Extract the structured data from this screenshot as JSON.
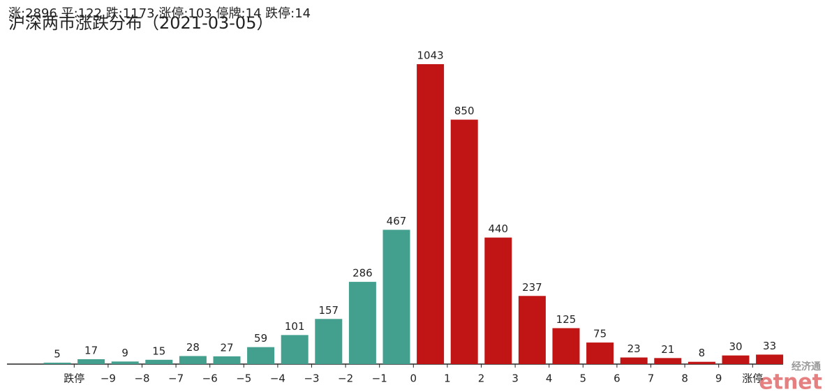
{
  "chart_data": {
    "type": "bar",
    "summary": "涨:2896 平:122 跌:1173 涨停:103 停牌:14 跌停:14",
    "title": "沪深两市涨跌分布（2021-03-05）",
    "categories": [
      null,
      null,
      null,
      null,
      null,
      null,
      null,
      null,
      null,
      null,
      null,
      null,
      null,
      null,
      null,
      null,
      null,
      null,
      null,
      null,
      null,
      null
    ],
    "xtick_labels": [
      "跌停",
      "−9",
      "−8",
      "−7",
      "−6",
      "−5",
      "−4",
      "−3",
      "−2",
      "−1",
      "0",
      "1",
      "2",
      "3",
      "4",
      "5",
      "6",
      "7",
      "8",
      "9",
      "涨停"
    ],
    "values": [
      5,
      17,
      9,
      15,
      28,
      27,
      59,
      101,
      157,
      286,
      467,
      1043,
      850,
      440,
      237,
      125,
      75,
      23,
      21,
      8,
      30,
      33
    ],
    "colors": [
      "#43a08f",
      "#43a08f",
      "#43a08f",
      "#43a08f",
      "#43a08f",
      "#43a08f",
      "#43a08f",
      "#43a08f",
      "#43a08f",
      "#43a08f",
      "#43a08f",
      "#c11414",
      "#c11414",
      "#c11414",
      "#c11414",
      "#c11414",
      "#c11414",
      "#c11414",
      "#c11414",
      "#c11414",
      "#c11414",
      "#c11414"
    ],
    "ylim": [
      0,
      1100
    ],
    "watermark": [
      "经济通",
      "etnet"
    ]
  }
}
